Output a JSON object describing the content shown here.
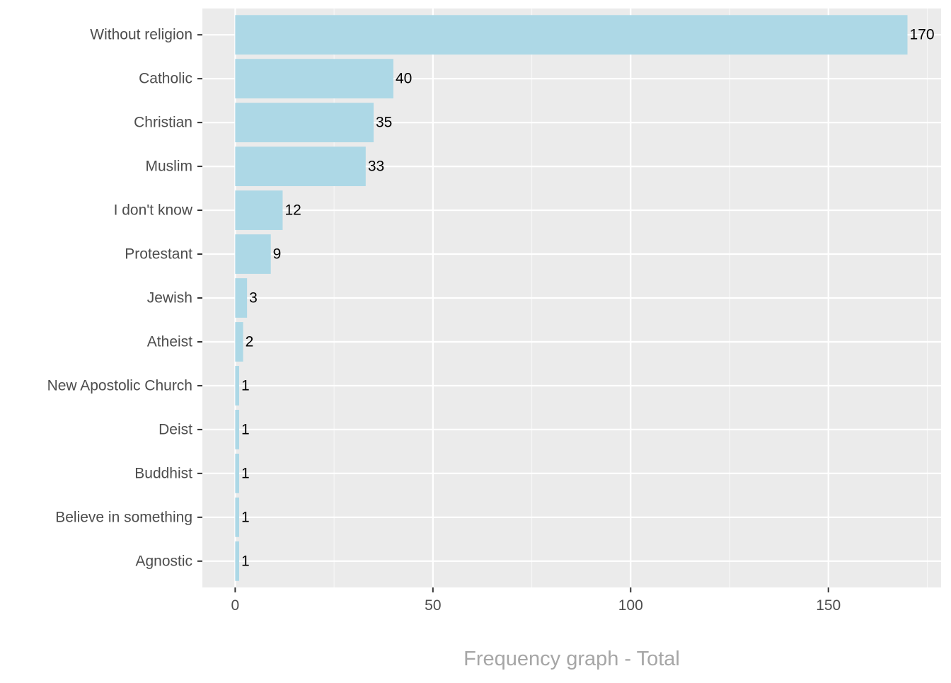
{
  "chart_data": {
    "type": "bar",
    "orientation": "horizontal",
    "categories": [
      "Without religion",
      "Catholic",
      "Christian",
      "Muslim",
      "I don't know",
      "Protestant",
      "Jewish",
      "Atheist",
      "New Apostolic Church",
      "Deist",
      "Buddhist",
      "Believe in something",
      "Agnostic"
    ],
    "values": [
      170,
      40,
      35,
      33,
      12,
      9,
      3,
      2,
      1,
      1,
      1,
      1,
      1
    ],
    "data_labels": [
      "170",
      "40",
      "35",
      "33",
      "12",
      "9",
      "3",
      "2",
      "1",
      "1",
      "1",
      "1",
      "1"
    ],
    "title": "",
    "xlabel": "Frequency graph - Total",
    "ylabel": "",
    "xlim": [
      -8.3,
      178.5
    ],
    "x_ticks": [
      0,
      50,
      100,
      150
    ],
    "x_tick_labels": [
      "0",
      "50",
      "100",
      "150"
    ],
    "x_minor_ticks": [
      25,
      75,
      125,
      175
    ],
    "grid": true,
    "legend": "none"
  },
  "colors": {
    "panel_background": "#EBEBEB",
    "grid_major": "#FFFFFF",
    "grid_minor": "#F7F7F7",
    "bar_fill": "#ADD8E6",
    "tick_label": "#4D4D4D",
    "data_label": "#000000",
    "axis_title": "#A6A6A6",
    "tick_mark": "#333333"
  }
}
